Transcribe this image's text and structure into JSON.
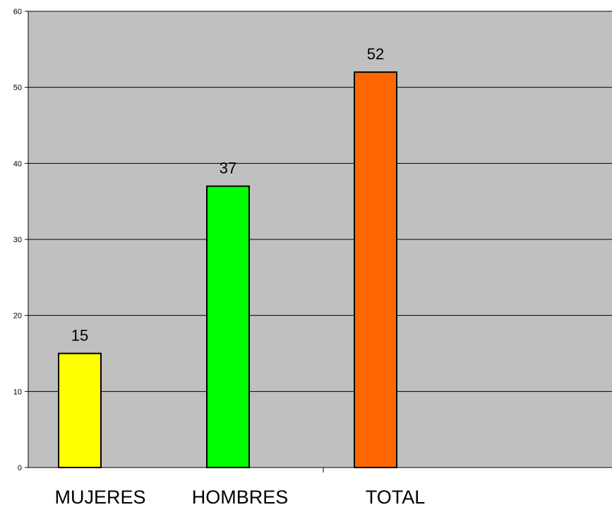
{
  "chart_data": {
    "type": "bar",
    "categories": [
      "MUJERES",
      "HOMBRES",
      "TOTAL"
    ],
    "values": [
      15,
      37,
      52
    ],
    "bar_colors": [
      "#ffff00",
      "#00ff00",
      "#ff6600"
    ],
    "data_labels": [
      "15",
      "37",
      "52"
    ],
    "ylim": [
      0,
      60
    ],
    "y_ticks": [
      0,
      10,
      20,
      30,
      40,
      50,
      60
    ],
    "grid": true,
    "plot_background": "#c0c0c0",
    "legend": "none"
  }
}
